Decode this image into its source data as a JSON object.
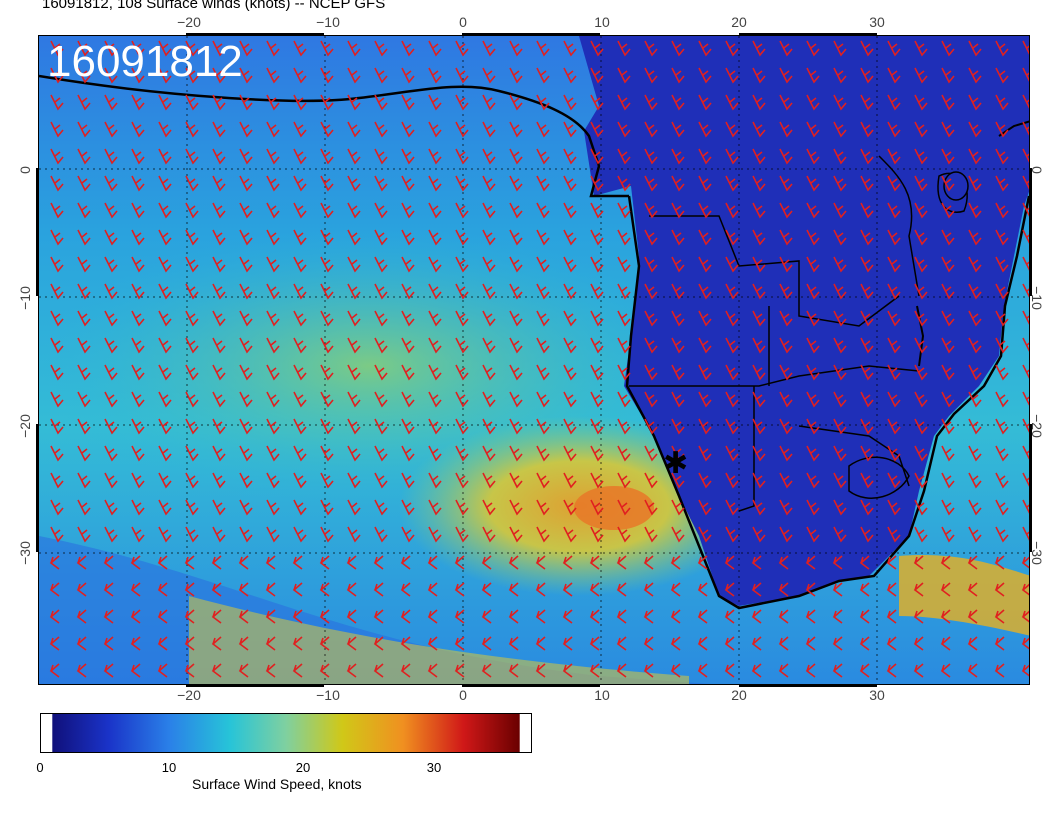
{
  "title": "16091812, 108 Surface winds (knots) -- NCEP GFS",
  "map": {
    "stamp": "16091812",
    "lon_range": [
      -30,
      41
    ],
    "lat_range": [
      -40,
      10
    ],
    "lon_ticks": [
      "−20",
      "−10",
      "0",
      "10",
      "20",
      "30"
    ],
    "lat_ticks": [
      "0",
      "−10",
      "−20",
      "−30"
    ],
    "field_colors": {
      "land_calm": "#1f2fb8",
      "ocean_low": "#2a6fe0",
      "ocean_mid": "#27b8d8",
      "ocean_high": "#8fd070",
      "jet_core": "#f0b020",
      "coast": "#000000",
      "barbs": "#e02020",
      "grid": "#ffffff"
    },
    "wind_barb_color": "#e02020",
    "marker": "✱",
    "grid": true
  },
  "colorbar": {
    "label": "Surface Wind Speed, knots",
    "ticks": [
      "0",
      "10",
      "20",
      "30"
    ],
    "range": [
      0,
      38
    ],
    "stops": [
      "#10107a",
      "#1a33c8",
      "#2a80e8",
      "#27c4d8",
      "#7fd0a0",
      "#d0c818",
      "#f09020",
      "#d01818",
      "#6a0000"
    ]
  }
}
